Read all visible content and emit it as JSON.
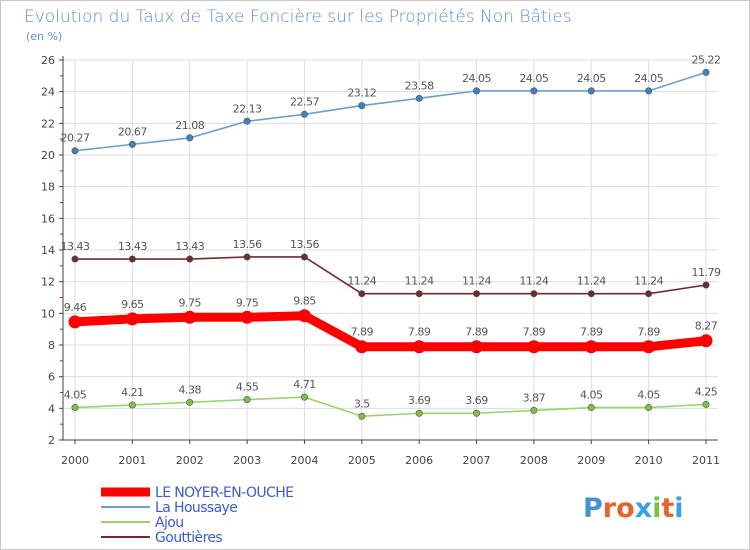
{
  "chart_data": {
    "type": "line",
    "title": "Evolution du Taux de Taxe Foncière sur les Propriétés Non Bâties",
    "subtitle": "(en %)",
    "xlabel": "",
    "ylabel": "",
    "categories": [
      "2000",
      "2001",
      "2002",
      "2003",
      "2004",
      "2005",
      "2006",
      "2007",
      "2008",
      "2009",
      "2010",
      "2011"
    ],
    "ylim": [
      2,
      26
    ],
    "yticks": [
      "2",
      "4",
      "6",
      "8",
      "10",
      "12",
      "14",
      "16",
      "18",
      "20",
      "22",
      "24",
      "26"
    ],
    "grid": true,
    "legend_position": "bottom-left",
    "series": [
      {
        "name": "La Houssaye",
        "color": "#6a9fd0",
        "marker": "#3d82c4",
        "emphasis": false,
        "values": [
          20.27,
          20.67,
          21.08,
          22.13,
          22.57,
          23.12,
          23.58,
          24.05,
          24.05,
          24.05,
          24.05,
          25.22
        ],
        "labels": [
          "20.27",
          "20.67",
          "21.08",
          "22.13",
          "22.57",
          "23.12",
          "23.58",
          "24.05",
          "24.05",
          "24.05",
          "24.05",
          "25.22"
        ]
      },
      {
        "name": "Gouttières",
        "color": "#6e2c2c",
        "marker": "#6e2c2c",
        "emphasis": false,
        "values": [
          13.43,
          13.43,
          13.43,
          13.56,
          13.56,
          11.24,
          11.24,
          11.24,
          11.24,
          11.24,
          11.24,
          11.79
        ],
        "labels": [
          "13.43",
          "13.43",
          "13.43",
          "13.56",
          "13.56",
          "11.24",
          "11.24",
          "11.24",
          "11.24",
          "11.24",
          "11.24",
          "11.79"
        ]
      },
      {
        "name": "LE NOYER-EN-OUCHE",
        "color": "#ff0000",
        "marker": "#ff0000",
        "emphasis": true,
        "values": [
          9.46,
          9.65,
          9.75,
          9.75,
          9.85,
          7.89,
          7.89,
          7.89,
          7.89,
          7.89,
          7.89,
          8.27
        ],
        "labels": [
          "9.46",
          "9.65",
          "9.75",
          "9.75",
          "9.85",
          "7.89",
          "7.89",
          "7.89",
          "7.89",
          "7.89",
          "7.89",
          "8.27"
        ]
      },
      {
        "name": "Ajou",
        "color": "#99d46a",
        "marker": "#7cc242",
        "emphasis": false,
        "values": [
          4.05,
          4.21,
          4.38,
          4.55,
          4.71,
          3.5,
          3.69,
          3.69,
          3.87,
          4.05,
          4.05,
          4.25
        ],
        "labels": [
          "4.05",
          "4.21",
          "4.38",
          "4.55",
          "4.71",
          "3.5",
          "3.69",
          "3.69",
          "3.87",
          "4.05",
          "4.05",
          "4.25"
        ]
      }
    ],
    "legend": [
      {
        "name": "LE NOYER-EN-OUCHE",
        "color": "#ff0000",
        "thick": true
      },
      {
        "name": "La Houssaye",
        "color": "#6a9fd0",
        "thick": false
      },
      {
        "name": "Ajou",
        "color": "#99d46a",
        "thick": false
      },
      {
        "name": "Gouttières",
        "color": "#6e2c2c",
        "thick": false
      }
    ]
  },
  "logo": {
    "text": "Proxiti",
    "colors": [
      "#4a8fd6",
      "#e8652a",
      "#e8652a",
      "#3aa0e0",
      "#7cc242",
      "#e8652a",
      "#3aa0e0"
    ]
  },
  "colors": {
    "title": "#5a8fd0",
    "legend_text": "#3a5ad8",
    "axis": "#444444",
    "grid": "#dddddd",
    "label": "#555555",
    "tick_accent": "#ff0000"
  }
}
